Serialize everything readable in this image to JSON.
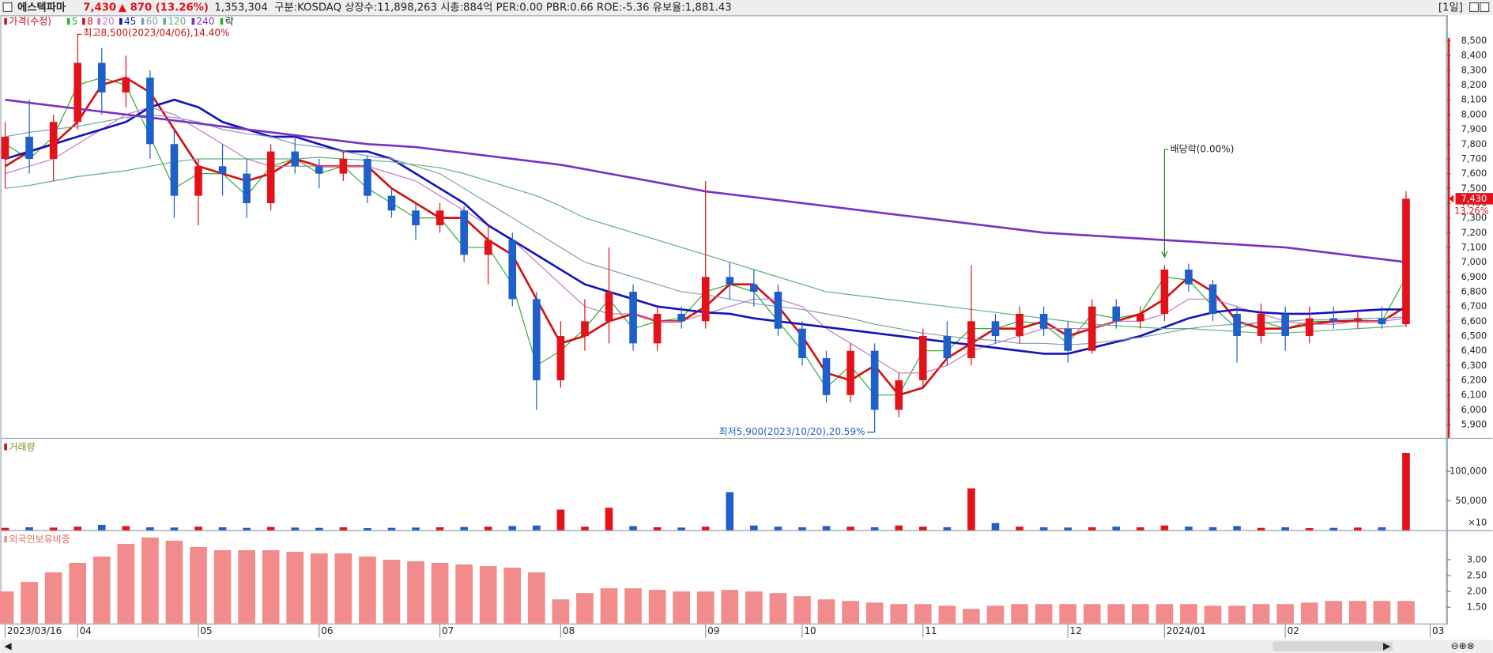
{
  "header": {
    "name": "에스텍파마",
    "price": "7,430",
    "change": "▲ 870",
    "change_pct": "(13.26%)",
    "volume": "1,353,304",
    "info": "구분:KOSDAQ 상장수:11,898,263 시총:884억 PER:0.00 PBR:0.66 ROE:-5.36 유보율:1,881.43",
    "period": "[1일]"
  },
  "chart_data": [
    {
      "type": "candlestick",
      "title": "가격(수정)",
      "categories": [
        "2023/03/16",
        null,
        null,
        "04",
        null,
        null,
        null,
        null,
        "05",
        null,
        null,
        null,
        null,
        "06",
        null,
        null,
        null,
        null,
        "07",
        null,
        null,
        null,
        null,
        "08",
        null,
        null,
        null,
        null,
        null,
        "09",
        null,
        null,
        null,
        "10",
        null,
        null,
        null,
        null,
        "11",
        null,
        null,
        null,
        null,
        null,
        "12",
        null,
        null,
        null,
        "2024/01",
        null,
        null,
        null,
        null,
        "02",
        null,
        null,
        null,
        null,
        null,
        "03"
      ],
      "open": [
        7700,
        7850,
        7700,
        7950,
        8350,
        8150,
        8250,
        7800,
        7450,
        7650,
        7600,
        7400,
        7750,
        7650,
        7600,
        7700,
        7450,
        7350,
        7250,
        7350,
        7050,
        7150,
        6750,
        6200,
        6500,
        6600,
        6800,
        6450,
        6650,
        6600,
        6900,
        6850,
        6800,
        6550,
        6350,
        6100,
        6400,
        6000,
        6200,
        6500,
        6350,
        6600,
        6500,
        6650,
        6550,
        6400,
        6700,
        6600,
        6650,
        6950,
        6850,
        6650,
        6500,
        6650,
        6500,
        6620,
        6600,
        6620,
        6580,
        null
      ],
      "high": [
        7950,
        8100,
        8000,
        8500,
        8450,
        8400,
        8300,
        7900,
        7700,
        7800,
        7700,
        7800,
        7850,
        7700,
        7750,
        7720,
        7500,
        7400,
        7400,
        7380,
        7250,
        7200,
        6800,
        6600,
        6750,
        7100,
        6850,
        6700,
        6700,
        7550,
        7000,
        6950,
        6850,
        6600,
        6400,
        6450,
        6450,
        6250,
        6550,
        6600,
        6980,
        6650,
        6700,
        6700,
        6600,
        6750,
        6750,
        6700,
        6980,
        6990,
        6880,
        6700,
        6720,
        6700,
        6700,
        6700,
        6680,
        6700,
        7480,
        null
      ],
      "low": [
        7500,
        7600,
        7550,
        7900,
        8000,
        8050,
        7700,
        7300,
        7250,
        7450,
        7300,
        7350,
        7600,
        7500,
        7550,
        7400,
        7300,
        7150,
        7200,
        7000,
        6850,
        6700,
        6000,
        6150,
        6400,
        6450,
        6400,
        6400,
        6550,
        6550,
        6750,
        6700,
        6500,
        6300,
        6050,
        6050,
        5900,
        5950,
        6150,
        6300,
        6300,
        6450,
        6450,
        6500,
        6320,
        6380,
        6550,
        6550,
        6600,
        6800,
        6600,
        6320,
        6450,
        6400,
        6450,
        6550,
        6550,
        6550,
        6560,
        null
      ],
      "close": [
        7850,
        7700,
        7950,
        8350,
        8150,
        8250,
        7800,
        7450,
        7650,
        7600,
        7400,
        7750,
        7650,
        7600,
        7700,
        7450,
        7350,
        7250,
        7350,
        7050,
        7150,
        6750,
        6200,
        6500,
        6600,
        6800,
        6450,
        6650,
        6600,
        6900,
        6850,
        6800,
        6550,
        6350,
        6100,
        6400,
        6000,
        6200,
        6500,
        6350,
        6600,
        6500,
        6650,
        6550,
        6400,
        6700,
        6600,
        6650,
        6950,
        6850,
        6650,
        6500,
        6650,
        6500,
        6620,
        6600,
        6620,
        6580,
        7430,
        null
      ],
      "up_color": "#e3121a",
      "down_color": "#1f5fc9",
      "series": [
        {
          "name": "5",
          "color": "#2fae2f",
          "width": 1,
          "values": [
            7800,
            7700,
            7850,
            8200,
            8250,
            8200,
            7850,
            7500,
            7600,
            7600,
            7450,
            7650,
            7700,
            7600,
            7650,
            7500,
            7400,
            7300,
            7300,
            7100,
            7100,
            6850,
            6300,
            6400,
            6550,
            6750,
            6550,
            6600,
            6620,
            6800,
            6850,
            6800,
            6600,
            6400,
            6150,
            6300,
            6100,
            6100,
            6400,
            6400,
            6550,
            6550,
            6600,
            6580,
            6450,
            6650,
            6620,
            6650,
            6900,
            6880,
            6700,
            6550,
            6600,
            6550,
            6600,
            6600,
            6610,
            6600,
            6900,
            null
          ]
        },
        {
          "name": "8",
          "color": "#d41010",
          "width": 2.2,
          "values": [
            7650,
            7750,
            7800,
            7950,
            8200,
            8250,
            8150,
            7900,
            7650,
            7600,
            7550,
            7600,
            7700,
            7650,
            7650,
            7650,
            7500,
            7400,
            7300,
            7300,
            7150,
            7050,
            6750,
            6450,
            6500,
            6600,
            6650,
            6600,
            6600,
            6700,
            6850,
            6850,
            6700,
            6500,
            6250,
            6200,
            6300,
            6100,
            6150,
            6350,
            6450,
            6550,
            6550,
            6600,
            6500,
            6550,
            6600,
            6650,
            6750,
            6900,
            6800,
            6600,
            6550,
            6550,
            6580,
            6600,
            6600,
            6600,
            6700,
            null
          ]
        },
        {
          "name": "20",
          "color": "#c47ac4",
          "width": 1,
          "values": [
            7600,
            7650,
            7700,
            7800,
            7900,
            8000,
            8050,
            8000,
            7900,
            7800,
            7700,
            7650,
            7650,
            7650,
            7650,
            7650,
            7600,
            7550,
            7450,
            7350,
            7250,
            7150,
            7000,
            6850,
            6700,
            6650,
            6650,
            6600,
            6600,
            6650,
            6700,
            6750,
            6750,
            6700,
            6550,
            6450,
            6350,
            6250,
            6250,
            6300,
            6400,
            6450,
            6500,
            6550,
            6550,
            6550,
            6600,
            6600,
            6650,
            6750,
            6750,
            6700,
            6650,
            6600,
            6580,
            6580,
            6600,
            6600,
            6620,
            null
          ]
        },
        {
          "name": "45",
          "color": "#1414b8",
          "width": 2.2,
          "values": [
            7700,
            7750,
            7800,
            7850,
            7900,
            7950,
            8050,
            8100,
            8050,
            7950,
            7900,
            7850,
            7850,
            7800,
            7750,
            7750,
            7700,
            7600,
            7500,
            7400,
            7250,
            7150,
            7050,
            6950,
            6850,
            6800,
            6750,
            6700,
            6680,
            6660,
            6650,
            6620,
            6600,
            6580,
            6560,
            6540,
            6520,
            6500,
            6480,
            6460,
            6440,
            6420,
            6400,
            6380,
            6380,
            6420,
            6460,
            6500,
            6560,
            6620,
            6660,
            6680,
            6660,
            6650,
            6650,
            6660,
            6670,
            6680,
            6680,
            null
          ]
        },
        {
          "name": "60",
          "color": "#7f9fb5",
          "width": 1,
          "values": [
            7850,
            7880,
            7900,
            7920,
            7950,
            7980,
            8000,
            7980,
            7950,
            7900,
            7870,
            7850,
            7800,
            7780,
            7750,
            7720,
            7700,
            7650,
            7600,
            7500,
            7400,
            7300,
            7200,
            7100,
            7000,
            6950,
            6900,
            6850,
            6800,
            6780,
            6750,
            6720,
            6700,
            6680,
            6650,
            6620,
            6580,
            6550,
            6520,
            6500,
            6480,
            6470,
            6450,
            6450,
            6440,
            6450,
            6470,
            6490,
            6520,
            6550,
            6570,
            6580,
            6590,
            6600,
            6610,
            6610,
            6620,
            6620,
            6630,
            null
          ]
        },
        {
          "name": "120",
          "color": "#5fb07f",
          "width": 1,
          "values": [
            7500,
            7520,
            7550,
            7580,
            7600,
            7620,
            7650,
            7680,
            7700,
            7700,
            7700,
            7700,
            7700,
            7710,
            7700,
            7690,
            7680,
            7660,
            7640,
            7600,
            7550,
            7500,
            7450,
            7380,
            7300,
            7250,
            7200,
            7150,
            7100,
            7050,
            7000,
            6950,
            6900,
            6850,
            6800,
            6780,
            6760,
            6740,
            6720,
            6700,
            6680,
            6660,
            6640,
            6620,
            6600,
            6580,
            6570,
            6560,
            6550,
            6550,
            6540,
            6530,
            6520,
            6520,
            6530,
            6540,
            6550,
            6560,
            6570,
            null
          ]
        },
        {
          "name": "240",
          "color": "#7a32c2",
          "width": 2.2,
          "values": [
            8100,
            8080,
            8060,
            8040,
            8020,
            8000,
            7980,
            7960,
            7940,
            7920,
            7900,
            7880,
            7860,
            7840,
            7820,
            7800,
            7790,
            7780,
            7760,
            7740,
            7720,
            7700,
            7680,
            7660,
            7630,
            7600,
            7570,
            7540,
            7510,
            7480,
            7460,
            7440,
            7420,
            7400,
            7380,
            7360,
            7340,
            7320,
            7300,
            7280,
            7260,
            7240,
            7220,
            7200,
            7190,
            7180,
            7170,
            7160,
            7150,
            7140,
            7130,
            7120,
            7110,
            7100,
            7080,
            7060,
            7040,
            7020,
            7000,
            null
          ]
        }
      ],
      "legend_extra": "락",
      "ylim": [
        5810,
        8660
      ],
      "yticks": [
        {
          "value": 5900,
          "label": "5,900"
        },
        {
          "value": 6000,
          "label": "6,000"
        },
        {
          "value": 6100,
          "label": "6,100"
        },
        {
          "value": 6200,
          "label": "6,200"
        },
        {
          "value": 6300,
          "label": "6,300"
        },
        {
          "value": 6400,
          "label": "6,400"
        },
        {
          "value": 6500,
          "label": "6,500"
        },
        {
          "value": 6600,
          "label": "6,600"
        },
        {
          "value": 6700,
          "label": "6,700"
        },
        {
          "value": 6800,
          "label": "6,800"
        },
        {
          "value": 6900,
          "label": "6,900"
        },
        {
          "value": 7000,
          "label": "7,000"
        },
        {
          "value": 7100,
          "label": "7,100"
        },
        {
          "value": 7200,
          "label": "7,200"
        },
        {
          "value": 7300,
          "label": "7,300"
        },
        {
          "value": 7400,
          "label": "7,400"
        },
        {
          "value": 7500,
          "label": "7,500"
        },
        {
          "value": 7600,
          "label": "7,600"
        },
        {
          "value": 7700,
          "label": "7,700"
        },
        {
          "value": 7800,
          "label": "7,800"
        },
        {
          "value": 7900,
          "label": "7,900"
        },
        {
          "value": 8000,
          "label": "8,000"
        },
        {
          "value": 8100,
          "label": "8,100"
        },
        {
          "value": 8200,
          "label": "8,200"
        },
        {
          "value": 8300,
          "label": "8,300"
        },
        {
          "value": 8400,
          "label": "8,400"
        },
        {
          "value": 8500,
          "label": "8,500"
        }
      ],
      "annotations": {
        "high": "최고8,500(2023/04/06),14.40%",
        "low": "최저5,900(2023/10/20),20.59%",
        "dividend": "배당락(0.00%)"
      },
      "last_price": {
        "value": 7430,
        "label": "7,430"
      },
      "last_change": "13.26%"
    },
    {
      "type": "bar",
      "title": "거래량",
      "values": [
        4000,
        5000,
        4500,
        6000,
        9000,
        7000,
        5000,
        4500,
        6000,
        5000,
        4000,
        5500,
        4500,
        4000,
        5000,
        3500,
        4000,
        4500,
        5000,
        5500,
        6000,
        7000,
        8000,
        35000,
        6000,
        38000,
        7000,
        5000,
        4500,
        6000,
        64500,
        8000,
        6000,
        5000,
        7000,
        6000,
        5000,
        8000,
        6000,
        5000,
        71000,
        12000,
        6000,
        5000,
        4500,
        5000,
        6000,
        5000,
        8000,
        6000,
        5000,
        7000,
        4000,
        5000,
        3500,
        4000,
        4500,
        5000,
        131000,
        null
      ],
      "ylim": [
        0,
        155000
      ],
      "yticks": [
        {
          "value": 50000,
          "label": "50,000"
        },
        {
          "value": 100000,
          "label": "100,000"
        }
      ],
      "unit_label": "×10"
    },
    {
      "type": "bar",
      "title": "외국인보유비중",
      "color": "#f28c8c",
      "values": [
        2.0,
        2.3,
        2.6,
        2.9,
        3.1,
        3.5,
        3.7,
        3.6,
        3.4,
        3.3,
        3.3,
        3.3,
        3.25,
        3.2,
        3.2,
        3.1,
        3.0,
        2.95,
        2.9,
        2.85,
        2.8,
        2.75,
        2.6,
        1.75,
        1.95,
        2.1,
        2.1,
        2.05,
        2.0,
        2.0,
        2.05,
        2.0,
        1.95,
        1.85,
        1.75,
        1.7,
        1.65,
        1.6,
        1.6,
        1.55,
        1.45,
        1.55,
        1.6,
        1.6,
        1.6,
        1.6,
        1.6,
        1.6,
        1.6,
        1.6,
        1.55,
        1.55,
        1.6,
        1.6,
        1.65,
        1.7,
        1.7,
        1.7,
        1.7,
        null
      ],
      "ylim": [
        0.99,
        3.9
      ],
      "yticks": [
        {
          "value": 1.5,
          "label": "1.50"
        },
        {
          "value": 2,
          "label": "2.00"
        },
        {
          "value": 2.5,
          "label": "2.50"
        },
        {
          "value": 3,
          "label": "3.00"
        }
      ]
    }
  ]
}
